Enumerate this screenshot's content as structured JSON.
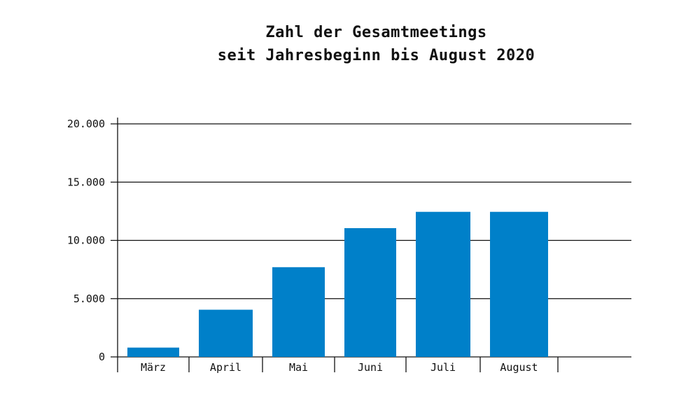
{
  "chart_data": {
    "type": "bar",
    "title_lines": [
      "Zahl der Gesamtmeetings",
      "seit Jahresbeginn bis August 2020"
    ],
    "xlabel": "",
    "ylabel": "",
    "categories": [
      "März",
      "April",
      "Mai",
      "Juni",
      "Juli",
      "August"
    ],
    "values": [
      800,
      4050,
      7700,
      11050,
      12450,
      12450
    ],
    "ylim": [
      0,
      20000
    ],
    "yticks": [
      0,
      5000,
      10000,
      15000,
      20000
    ],
    "ytick_labels": [
      "0",
      "5.000",
      "10.000",
      "15.000",
      "20.000"
    ],
    "grid": true,
    "bar_color": "#0080C9",
    "grid_color": "#111111"
  }
}
